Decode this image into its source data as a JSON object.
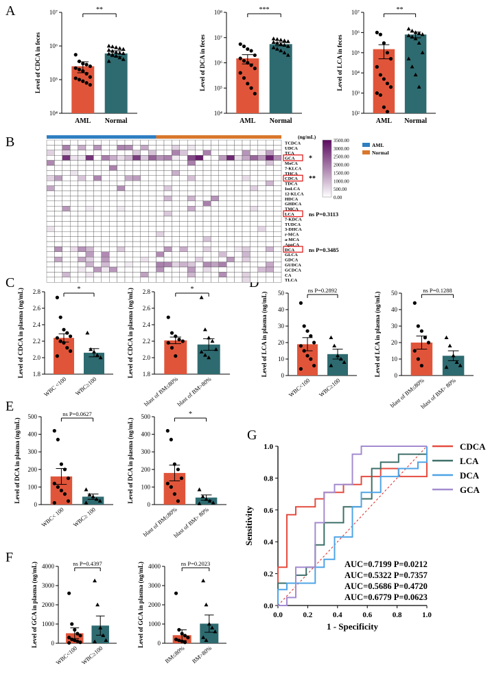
{
  "colors": {
    "aml": "#e0553a",
    "normal": "#3f7a7f",
    "normal_bar": "#2e6b70",
    "roc_cdca": "#e44b3f",
    "roc_lca": "#3d6f68",
    "roc_dca": "#4ea4e6",
    "roc_gca": "#a38bd0",
    "heat_max": "#5a0a5f",
    "legend_aml": "#2f7fc1",
    "legend_normal": "#d9772c",
    "sig_red": "#e02020"
  },
  "panels": {
    "A": "A",
    "B": "B",
    "C": "C",
    "D": "D",
    "E": "E",
    "F": "F",
    "G": "G"
  },
  "chart_data": [
    {
      "id": "A1",
      "type": "bar",
      "log": true,
      "ylim": [
        10000,
        10000000
      ],
      "ticks": [
        "10⁴",
        "10⁵",
        "10⁶",
        "10⁷"
      ],
      "ylabel": "Level of CDCA  in  feces",
      "categories": [
        "AML",
        "Normal"
      ],
      "values": [
        250000,
        600000
      ],
      "errors": [
        90000,
        120000
      ],
      "sig": "**",
      "points": [
        [
          550000,
          350000,
          300000,
          280000,
          250000,
          220000,
          200000,
          180000,
          150000,
          120000,
          110000,
          100000,
          90000,
          80000,
          70000
        ],
        [
          1000000,
          950000,
          900000,
          850000,
          800000,
          750000,
          700000,
          650000,
          620000,
          600000,
          580000,
          550000,
          500000,
          450000,
          400000,
          350000
        ]
      ]
    },
    {
      "id": "A2",
      "type": "bar",
      "log": true,
      "ylim": [
        10000,
        100000000
      ],
      "ticks": [
        "10⁴",
        "10⁵",
        "10⁶",
        "10⁷",
        "10⁸"
      ],
      "ylabel": "Level of DCA  in  feces",
      "categories": [
        "AML",
        "Normal"
      ],
      "values": [
        1500000,
        5500000
      ],
      "errors": [
        600000,
        800000
      ],
      "sig": "***",
      "points": [
        [
          5500000,
          4500000,
          3500000,
          3000000,
          2000000,
          1500000,
          1200000,
          1000000,
          800000,
          600000,
          400000,
          250000,
          150000,
          100000,
          60000
        ],
        [
          9000000,
          8500000,
          8000000,
          7500000,
          7000000,
          6500000,
          6000000,
          5500000,
          5000000,
          4500000,
          4000000,
          3500000,
          3000000,
          2500000,
          2000000
        ]
      ]
    },
    {
      "id": "A3",
      "type": "bar",
      "log": true,
      "ylim": [
        100,
        10000000
      ],
      "ticks": [
        "10²",
        "10³",
        "10⁴",
        "10⁵",
        "10⁶",
        "10⁷"
      ],
      "ylabel": "Level of LCA  in  feces",
      "categories": [
        "AML",
        "Normal"
      ],
      "values": [
        150000,
        800000
      ],
      "errors": [
        100000,
        250000
      ],
      "sig": "**",
      "points": [
        [
          1000000,
          800000,
          300000,
          100000,
          50000,
          20000,
          8000,
          5000,
          3000,
          2000,
          1000,
          800,
          200,
          120
        ],
        [
          1500000,
          1200000,
          1000000,
          900000,
          800000,
          700000,
          600000,
          500000,
          300000,
          100000,
          50000,
          20000,
          8000,
          2000
        ]
      ]
    },
    {
      "id": "B",
      "type": "heatmap",
      "rows": [
        "TCDCA",
        "UDCA",
        "TCA",
        "GCA",
        "MoCA",
        "7-KLCA",
        "THCA",
        "CDCA",
        "TDCA",
        "IsoLCA",
        "12-KLCA",
        "HDCA",
        "GHDCA",
        "TMCA",
        "LCA",
        "7-KDCA",
        "TUDCA",
        "3-DHCA",
        "r-MCA",
        "a-MCA",
        "ApoCA",
        "DCA",
        "GLCA",
        "GDCA",
        "GUDCA",
        "GCDCA",
        "CA",
        "TLCA"
      ],
      "boxed_rows": [
        "GCA",
        "CDCA",
        "LCA",
        "DCA"
      ],
      "annotations": [
        {
          "row": "GCA",
          "text": "*"
        },
        {
          "row": "CDCA",
          "text": "**"
        },
        {
          "row": "LCA",
          "text": "ns P=0.3113"
        },
        {
          "row": "DCA",
          "text": "ns P=0.3485"
        }
      ],
      "n_aml": 14,
      "n_normal": 16,
      "scale_unit": "(ng/mL)",
      "scale_ticks": [
        "3500.00",
        "3000.00",
        "2500.00",
        "2000.00",
        "1500.00",
        "1000.00",
        "500.00",
        "0.00"
      ],
      "legend": [
        "AML",
        "Normal"
      ]
    },
    {
      "id": "C1",
      "type": "bar",
      "ylim": [
        1.8,
        2.8
      ],
      "ticks": [
        "1.8",
        "2.0",
        "2.2",
        "2.4",
        "2.6",
        "2.8"
      ],
      "ylabel": "Level of CDCA  in  plasma (ng/mL)",
      "categories": [
        "WBC <100",
        "WBC≥100"
      ],
      "values": [
        2.24,
        2.06
      ],
      "errors": [
        0.05,
        0.05
      ],
      "sig": "*",
      "points": [
        [
          2.73,
          2.49,
          2.34,
          2.3,
          2.26,
          2.24,
          2.2,
          2.18,
          2.12,
          2.08,
          2.02
        ],
        [
          2.3,
          2.1,
          2.07,
          2.03,
          2.0
        ]
      ]
    },
    {
      "id": "C2",
      "type": "bar",
      "ylim": [
        1.8,
        2.8
      ],
      "ticks": [
        "1.8",
        "2.0",
        "2.2",
        "2.4",
        "2.6",
        "2.8"
      ],
      "ylabel": "Level of CDCA  in  plasma (ng/mL)",
      "categories": [
        "blast of BM≤80%",
        "blast of BM>80%"
      ],
      "values": [
        2.21,
        2.16
      ],
      "errors": [
        0.04,
        0.07
      ],
      "sig": "*",
      "points": [
        [
          2.49,
          2.3,
          2.26,
          2.22,
          2.2,
          2.18,
          2.12,
          2.02
        ],
        [
          2.73,
          2.34,
          2.24,
          2.2,
          2.1,
          2.07,
          2.03,
          2.0
        ]
      ]
    },
    {
      "id": "D1",
      "type": "bar",
      "ylim": [
        0,
        50
      ],
      "ticks": [
        "0",
        "10",
        "20",
        "30",
        "40",
        "50"
      ],
      "ylabel": "Level of LCA  in  plasma (ng/mL)",
      "categories": [
        "WBC<100",
        "WBC≥100"
      ],
      "values": [
        19,
        13
      ],
      "errors": [
        4,
        3
      ],
      "sig": "ns P=0.2892",
      "points": [
        [
          44,
          30,
          27,
          24,
          20,
          18,
          15,
          12,
          10,
          6,
          4
        ],
        [
          23,
          18,
          12,
          10,
          8,
          6
        ]
      ]
    },
    {
      "id": "D2",
      "type": "bar",
      "ylim": [
        0,
        50
      ],
      "ticks": [
        "0",
        "10",
        "20",
        "30",
        "40",
        "50"
      ],
      "ylabel": "Level of LCA in plasma (ng/mL)",
      "categories": [
        "blast of BM≤80%",
        "blast of BM> 80%"
      ],
      "values": [
        20,
        12
      ],
      "errors": [
        4,
        3
      ],
      "sig": "ns P=0.1288",
      "points": [
        [
          44,
          30,
          27,
          23,
          20,
          15,
          10,
          6
        ],
        [
          23,
          18,
          12,
          8,
          6,
          5
        ]
      ]
    },
    {
      "id": "E1",
      "type": "bar",
      "ylim": [
        0,
        500
      ],
      "ticks": [
        "0",
        "100",
        "200",
        "300",
        "400",
        "500"
      ],
      "ylabel": "Level  of  DCA  in  plasma (ng/mL)",
      "categories": [
        "WBC< 100",
        "WBC≥ 100"
      ],
      "values": [
        160,
        45
      ],
      "errors": [
        45,
        15
      ],
      "sig": "ns P=0.0627",
      "points": [
        [
          420,
          370,
          230,
          200,
          150,
          120,
          100,
          80,
          60,
          20,
          10
        ],
        [
          85,
          55,
          45,
          30,
          20,
          10
        ]
      ]
    },
    {
      "id": "E2",
      "type": "bar",
      "ylim": [
        0,
        500
      ],
      "ticks": [
        "0",
        "100",
        "200",
        "300",
        "400",
        "500"
      ],
      "ylabel": "Level  of  DCA  in  plasma (ng/mL)",
      "categories": [
        "blast of BM≤80%",
        "blast of BM> 80%"
      ],
      "values": [
        180,
        40
      ],
      "errors": [
        45,
        15
      ],
      "sig": "*",
      "points": [
        [
          420,
          370,
          230,
          200,
          150,
          120,
          100,
          60,
          20
        ],
        [
          85,
          45,
          30,
          20,
          10,
          5
        ]
      ]
    },
    {
      "id": "F1",
      "type": "bar",
      "ylim": [
        0,
        4000
      ],
      "ticks": [
        "0",
        "1000",
        "2000",
        "3000",
        "4000"
      ],
      "ylabel": "Level  of  GCA  in  plasma  (ng/mL)",
      "categories": [
        "WBC<100",
        "WBC≥100"
      ],
      "values": [
        520,
        920
      ],
      "errors": [
        280,
        500
      ],
      "sig": "ns P=0.4397",
      "points": [
        [
          2600,
          1000,
          700,
          500,
          400,
          300,
          200,
          150,
          100,
          50,
          20
        ],
        [
          3250,
          2000,
          800,
          400,
          150,
          80
        ]
      ]
    },
    {
      "id": "F2",
      "type": "bar",
      "ylim": [
        0,
        4000
      ],
      "ticks": [
        "0",
        "1000",
        "2000",
        "3000",
        "4000"
      ],
      "ylabel": "Level  of  GCA  in  plasma  (ng/mL)",
      "categories": [
        "BM≤80%",
        "BM>80%"
      ],
      "values": [
        420,
        1020
      ],
      "errors": [
        280,
        450
      ],
      "sig": "ns P=0.2023",
      "points": [
        [
          2600,
          700,
          500,
          400,
          300,
          200,
          150,
          100,
          50
        ],
        [
          3250,
          2000,
          1000,
          800,
          600,
          300,
          150
        ]
      ]
    },
    {
      "id": "G",
      "type": "line",
      "title": "",
      "xlabel": "1 - Specificity",
      "ylabel": "Sensitivity",
      "xlim": [
        0,
        1
      ],
      "ylim": [
        0,
        1
      ],
      "ticks": [
        "0.0",
        "0.2",
        "0.4",
        "0.6",
        "0.8",
        "1.0"
      ],
      "series": [
        {
          "name": "CDCA",
          "auc": "AUC=0.7199  P=0.0212",
          "x": [
            0,
            0,
            0.06,
            0.06,
            0.12,
            0.12,
            0.25,
            0.25,
            0.31,
            0.31,
            0.44,
            0.44,
            0.56,
            0.56,
            0.69,
            0.69,
            0.81,
            0.81,
            1.0,
            1.0
          ],
          "y": [
            0,
            0.24,
            0.24,
            0.57,
            0.57,
            0.62,
            0.62,
            0.67,
            0.67,
            0.71,
            0.71,
            0.76,
            0.76,
            0.81,
            0.81,
            0.86,
            0.86,
            0.81,
            0.81,
            1.0
          ]
        },
        {
          "name": "LCA",
          "auc": "AUC=0.5322  P=0.7357",
          "x": [
            0,
            0,
            0.12,
            0.12,
            0.19,
            0.19,
            0.25,
            0.25,
            0.31,
            0.31,
            0.44,
            0.44,
            0.56,
            0.56,
            0.63,
            0.63,
            0.69,
            0.69,
            0.81,
            0.81,
            1.0,
            1.0
          ],
          "y": [
            0,
            0.14,
            0.14,
            0.19,
            0.19,
            0.24,
            0.24,
            0.38,
            0.38,
            0.52,
            0.52,
            0.62,
            0.62,
            0.67,
            0.67,
            0.86,
            0.86,
            0.9,
            0.9,
            0.95,
            0.95,
            1.0
          ]
        },
        {
          "name": "DCA",
          "auc": "AUC=0.5686  P=0.4720",
          "x": [
            0,
            0,
            0.06,
            0.06,
            0.25,
            0.25,
            0.31,
            0.31,
            0.38,
            0.38,
            0.5,
            0.5,
            0.56,
            0.56,
            0.69,
            0.69,
            0.81,
            0.81,
            0.94,
            0.94,
            1.0,
            1.0
          ],
          "y": [
            0,
            0.1,
            0.1,
            0.14,
            0.14,
            0.24,
            0.24,
            0.29,
            0.29,
            0.43,
            0.43,
            0.62,
            0.62,
            0.71,
            0.71,
            0.81,
            0.81,
            0.86,
            0.86,
            0.9,
            0.9,
            1.0
          ]
        },
        {
          "name": "GCA",
          "auc": "AUC=0.6779  P=0.0623",
          "x": [
            0,
            0.06,
            0.06,
            0.12,
            0.12,
            0.25,
            0.25,
            0.31,
            0.31,
            0.38,
            0.38,
            0.5,
            0.5,
            0.56,
            0.56,
            1.0
          ],
          "y": [
            0,
            0,
            0.05,
            0.05,
            0.24,
            0.24,
            0.52,
            0.52,
            0.71,
            0.71,
            0.76,
            0.76,
            0.95,
            0.95,
            1.0,
            1.0
          ]
        }
      ]
    }
  ]
}
